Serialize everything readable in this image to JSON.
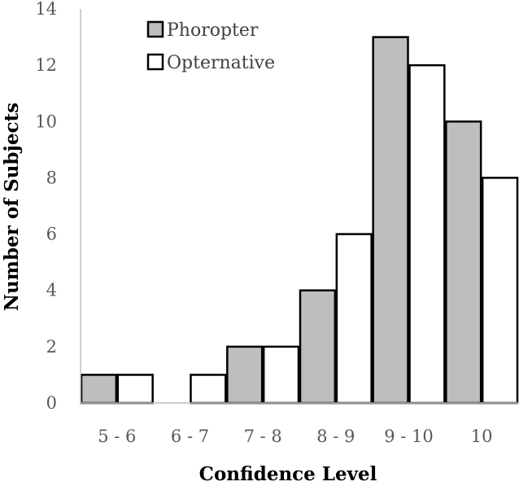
{
  "chart_data": {
    "type": "bar",
    "title": "",
    "xlabel": "Confidence Level",
    "ylabel": "Number of Subjects",
    "categories": [
      "5 - 6",
      "6 - 7",
      "7 - 8",
      "8 - 9",
      "9 - 10",
      "10"
    ],
    "series": [
      {
        "name": "Phoropter",
        "values": [
          1,
          0,
          2,
          4,
          13,
          10
        ],
        "color": "#bfbebe"
      },
      {
        "name": "Opternative",
        "values": [
          1,
          1,
          2,
          6,
          12,
          8
        ],
        "color": "#ffffff"
      }
    ],
    "ylim": [
      0,
      14
    ],
    "yticks": [
      0,
      2,
      4,
      6,
      8,
      10,
      12,
      14
    ],
    "grid": false,
    "legend_position": "top-left",
    "bar_outline_color": "#000000"
  }
}
